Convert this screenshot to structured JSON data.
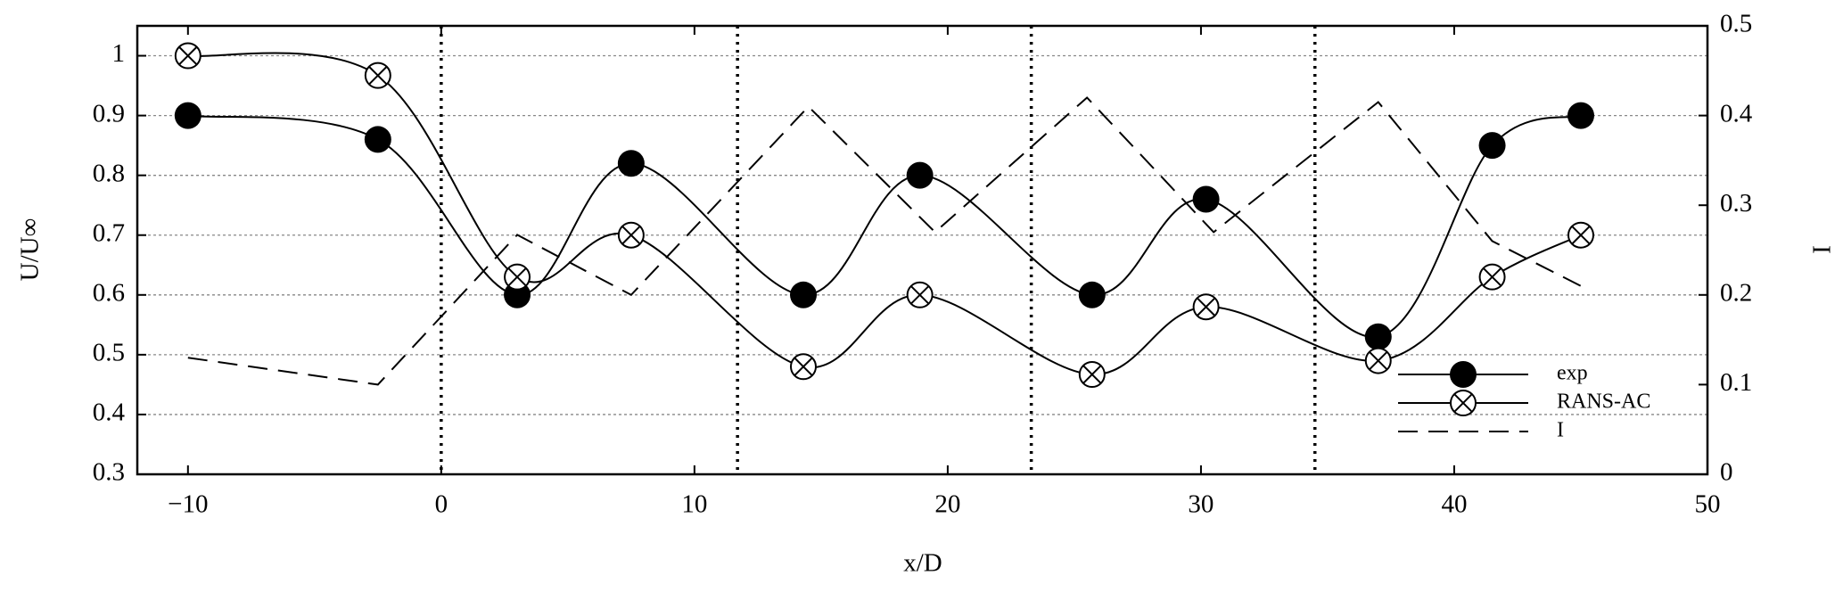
{
  "chart_data": {
    "type": "line",
    "xlabel": "x/D",
    "ylabel": "U/U∞",
    "y2label": "I",
    "xlim": [
      -12,
      50
    ],
    "ylim": [
      0.3,
      1.05
    ],
    "y2lim": [
      0,
      0.5
    ],
    "xticks": [
      {
        "value": -10,
        "label": "−10"
      },
      0,
      10,
      20,
      30,
      40,
      50
    ],
    "yticks": [
      0.3,
      0.4,
      0.5,
      0.6,
      0.7,
      0.8,
      0.9,
      1
    ],
    "y2ticks": [
      0,
      0.1,
      0.2,
      0.3,
      0.4,
      0.5
    ],
    "grid": true,
    "legend": "lower right",
    "vlines": [
      0,
      11.7,
      23.3,
      34.5
    ],
    "series": [
      {
        "name": "exp",
        "color": "#000000",
        "marker": "filled",
        "smooth": true,
        "x": [
          -10,
          -2.5,
          3,
          7.5,
          14.3,
          18.9,
          25.7,
          30.2,
          37,
          41.5,
          45
        ],
        "values": [
          0.9,
          0.86,
          0.6,
          0.82,
          0.6,
          0.8,
          0.6,
          0.76,
          0.53,
          0.85,
          0.9
        ]
      },
      {
        "name": "RANS-AC",
        "color": "#000000",
        "marker": "crossed",
        "smooth": true,
        "x": [
          -10,
          -2.5,
          3,
          7.5,
          14.3,
          18.9,
          25.7,
          30.2,
          37,
          41.5,
          45
        ],
        "values": [
          1.0,
          0.967,
          0.63,
          0.7,
          0.48,
          0.6,
          0.467,
          0.58,
          0.49,
          0.63,
          0.7
        ]
      },
      {
        "name": "I",
        "color": "#000000",
        "dashed": true,
        "axis": "y2",
        "x": [
          -10,
          -2.5,
          3,
          7.5,
          14.5,
          19.5,
          25.5,
          30.5,
          37,
          41.5,
          45
        ],
        "values": [
          0.13,
          0.1,
          0.267,
          0.2,
          0.41,
          0.27,
          0.42,
          0.27,
          0.415,
          0.26,
          0.21
        ]
      }
    ]
  }
}
